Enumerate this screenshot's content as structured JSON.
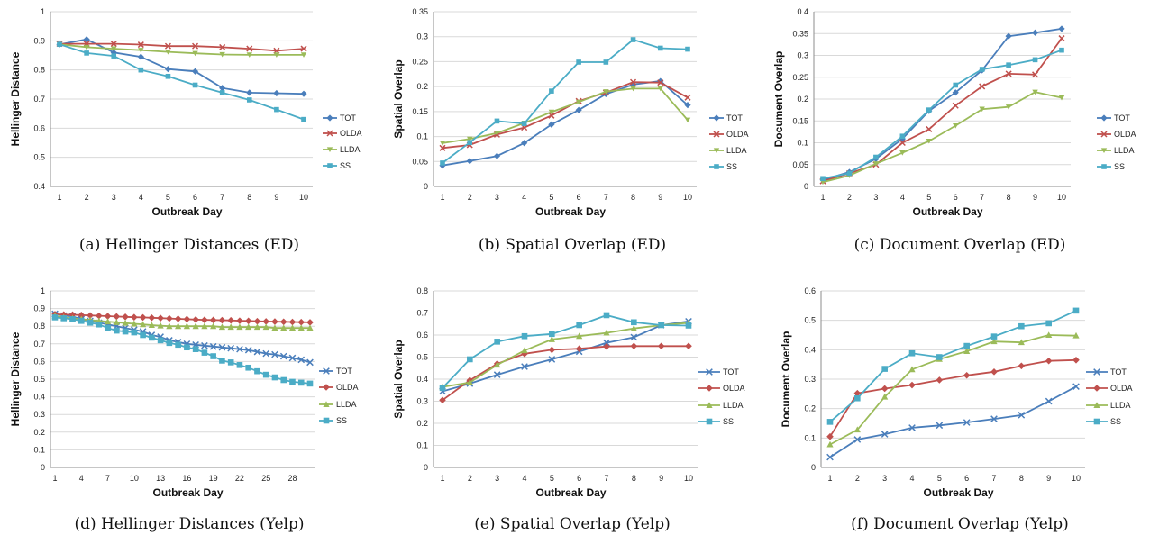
{
  "colors": {
    "TOT": "#4a7ebb",
    "OLDA": "#c0504d",
    "LLDA": "#9bbb59",
    "SS": "#4bacc6"
  },
  "legend_order": [
    "TOT",
    "OLDA",
    "LLDA",
    "SS"
  ],
  "chart_data": [
    {
      "type": "line",
      "title": "",
      "caption": "(a) Hellinger Distances (ED)",
      "xlabel": "Outbreak Day",
      "ylabel": "Hellinger Distance",
      "x": [
        1,
        2,
        3,
        4,
        5,
        6,
        7,
        8,
        9,
        10
      ],
      "xticks": [
        "1",
        "2",
        "3",
        "4",
        "5",
        "6",
        "7",
        "8",
        "9",
        "10"
      ],
      "ylim": [
        0.4,
        1
      ],
      "yticks": [
        "0.4",
        "0.5",
        "0.6",
        "0.7",
        "0.8",
        "0.9",
        "1"
      ],
      "marker_style": "classic",
      "series": [
        {
          "name": "TOT",
          "values": [
            0.888,
            0.905,
            0.86,
            0.845,
            0.803,
            0.795,
            0.738,
            0.722,
            0.72,
            0.718
          ]
        },
        {
          "name": "OLDA",
          "values": [
            0.89,
            0.89,
            0.89,
            0.887,
            0.882,
            0.882,
            0.878,
            0.873,
            0.866,
            0.873
          ]
        },
        {
          "name": "LLDA",
          "values": [
            0.888,
            0.878,
            0.873,
            0.868,
            0.862,
            0.857,
            0.853,
            0.852,
            0.852,
            0.852
          ]
        },
        {
          "name": "SS",
          "values": [
            0.888,
            0.858,
            0.848,
            0.8,
            0.778,
            0.748,
            0.722,
            0.697,
            0.664,
            0.63
          ]
        }
      ]
    },
    {
      "type": "line",
      "title": "",
      "caption": "(b) Spatial Overlap (ED)",
      "xlabel": "Outbreak Day",
      "ylabel": "Spatial Overlap",
      "x": [
        1,
        2,
        3,
        4,
        5,
        6,
        7,
        8,
        9,
        10
      ],
      "xticks": [
        "1",
        "2",
        "3",
        "4",
        "5",
        "6",
        "7",
        "8",
        "9",
        "10"
      ],
      "ylim": [
        0,
        0.35
      ],
      "yticks": [
        "0",
        "0.05",
        "0.1",
        "0.15",
        "0.2",
        "0.25",
        "0.3",
        "0.35"
      ],
      "marker_style": "classic",
      "series": [
        {
          "name": "TOT",
          "values": [
            0.042,
            0.051,
            0.061,
            0.087,
            0.124,
            0.153,
            0.185,
            0.204,
            0.211,
            0.163
          ]
        },
        {
          "name": "OLDA",
          "values": [
            0.077,
            0.083,
            0.104,
            0.118,
            0.142,
            0.171,
            0.188,
            0.209,
            0.208,
            0.178
          ]
        },
        {
          "name": "LLDA",
          "values": [
            0.087,
            0.095,
            0.107,
            0.127,
            0.149,
            0.169,
            0.19,
            0.196,
            0.196,
            0.133
          ]
        },
        {
          "name": "SS",
          "values": [
            0.047,
            0.088,
            0.131,
            0.126,
            0.191,
            0.249,
            0.249,
            0.294,
            0.277,
            0.275
          ]
        }
      ]
    },
    {
      "type": "line",
      "title": "",
      "caption": "(c) Document Overlap (ED)",
      "xlabel": "Outbreak Day",
      "ylabel": "Document Overlap",
      "x": [
        1,
        2,
        3,
        4,
        5,
        6,
        7,
        8,
        9,
        10
      ],
      "xticks": [
        "1",
        "2",
        "3",
        "4",
        "5",
        "6",
        "7",
        "8",
        "9",
        "10"
      ],
      "ylim": [
        0,
        0.4
      ],
      "yticks": [
        "0",
        "0.05",
        "0.1",
        "0.15",
        "0.2",
        "0.25",
        "0.3",
        "0.35",
        "0.4"
      ],
      "marker_style": "classic",
      "series": [
        {
          "name": "TOT",
          "values": [
            0.015,
            0.033,
            0.063,
            0.109,
            0.173,
            0.215,
            0.266,
            0.344,
            0.352,
            0.361
          ]
        },
        {
          "name": "OLDA",
          "values": [
            0.012,
            0.03,
            0.05,
            0.1,
            0.131,
            0.185,
            0.229,
            0.258,
            0.256,
            0.339
          ]
        },
        {
          "name": "LLDA",
          "values": [
            0.01,
            0.025,
            0.052,
            0.077,
            0.104,
            0.139,
            0.177,
            0.182,
            0.216,
            0.203
          ]
        },
        {
          "name": "SS",
          "values": [
            0.018,
            0.03,
            0.067,
            0.115,
            0.175,
            0.232,
            0.268,
            0.278,
            0.29,
            0.312
          ]
        }
      ]
    },
    {
      "type": "line",
      "title": "",
      "caption": "(d) Hellinger Distances (Yelp)",
      "xlabel": "Outbreak Day",
      "ylabel": "Hellinger Distance",
      "x": [
        1,
        2,
        3,
        4,
        5,
        6,
        7,
        8,
        9,
        10,
        11,
        12,
        13,
        14,
        15,
        16,
        17,
        18,
        19,
        20,
        21,
        22,
        23,
        24,
        25,
        26,
        27,
        28,
        29,
        30
      ],
      "xticks": [
        "1",
        "4",
        "7",
        "10",
        "13",
        "16",
        "19",
        "22",
        "25",
        "28"
      ],
      "ylim": [
        0,
        1
      ],
      "yticks": [
        "0",
        "0.1",
        "0.2",
        "0.3",
        "0.4",
        "0.5",
        "0.6",
        "0.7",
        "0.8",
        "0.9",
        "1"
      ],
      "marker_style": "modern",
      "series": [
        {
          "name": "TOT",
          "values": [
            0.87,
            0.86,
            0.855,
            0.84,
            0.83,
            0.82,
            0.81,
            0.8,
            0.79,
            0.78,
            0.77,
            0.75,
            0.74,
            0.72,
            0.71,
            0.7,
            0.695,
            0.69,
            0.685,
            0.68,
            0.675,
            0.67,
            0.665,
            0.655,
            0.645,
            0.64,
            0.63,
            0.62,
            0.61,
            0.595
          ]
        },
        {
          "name": "OLDA",
          "values": [
            0.868,
            0.866,
            0.865,
            0.863,
            0.861,
            0.859,
            0.857,
            0.855,
            0.853,
            0.851,
            0.85,
            0.848,
            0.846,
            0.844,
            0.842,
            0.84,
            0.838,
            0.836,
            0.835,
            0.834,
            0.833,
            0.831,
            0.83,
            0.828,
            0.827,
            0.826,
            0.825,
            0.824,
            0.823,
            0.822
          ]
        },
        {
          "name": "LLDA",
          "values": [
            0.858,
            0.85,
            0.845,
            0.84,
            0.835,
            0.83,
            0.826,
            0.822,
            0.818,
            0.814,
            0.81,
            0.806,
            0.803,
            0.8,
            0.8,
            0.8,
            0.8,
            0.8,
            0.8,
            0.795,
            0.795,
            0.795,
            0.795,
            0.795,
            0.795,
            0.79,
            0.79,
            0.79,
            0.79,
            0.79
          ]
        },
        {
          "name": "SS",
          "values": [
            0.85,
            0.845,
            0.84,
            0.83,
            0.82,
            0.81,
            0.79,
            0.775,
            0.77,
            0.765,
            0.75,
            0.735,
            0.72,
            0.705,
            0.695,
            0.68,
            0.67,
            0.65,
            0.63,
            0.605,
            0.595,
            0.58,
            0.565,
            0.545,
            0.525,
            0.51,
            0.495,
            0.485,
            0.48,
            0.475
          ]
        }
      ]
    },
    {
      "type": "line",
      "title": "",
      "caption": "(e) Spatial Overlap (Yelp)",
      "xlabel": "Outbreak Day",
      "ylabel": "Spatial Overlap",
      "x": [
        1,
        2,
        3,
        4,
        5,
        6,
        7,
        8,
        9,
        10
      ],
      "xticks": [
        "1",
        "2",
        "3",
        "4",
        "5",
        "6",
        "7",
        "8",
        "9",
        "10"
      ],
      "ylim": [
        0,
        0.8
      ],
      "yticks": [
        "0",
        "0.1",
        "0.2",
        "0.3",
        "0.4",
        "0.5",
        "0.6",
        "0.7",
        "0.8"
      ],
      "marker_style": "modern",
      "series": [
        {
          "name": "TOT",
          "values": [
            0.345,
            0.38,
            0.42,
            0.457,
            0.49,
            0.525,
            0.565,
            0.59,
            0.645,
            0.662
          ]
        },
        {
          "name": "OLDA",
          "values": [
            0.305,
            0.395,
            0.47,
            0.515,
            0.533,
            0.538,
            0.548,
            0.55,
            0.55,
            0.55
          ]
        },
        {
          "name": "LLDA",
          "values": [
            0.365,
            0.385,
            0.465,
            0.53,
            0.58,
            0.595,
            0.61,
            0.63,
            0.645,
            0.655
          ]
        },
        {
          "name": "SS",
          "values": [
            0.36,
            0.49,
            0.57,
            0.595,
            0.605,
            0.645,
            0.69,
            0.658,
            0.645,
            0.643
          ]
        }
      ]
    },
    {
      "type": "line",
      "title": "",
      "caption": "(f) Document Overlap (Yelp)",
      "xlabel": "Outbreak Day",
      "ylabel": "Document Overlap",
      "x": [
        1,
        2,
        3,
        4,
        5,
        6,
        7,
        8,
        9,
        10
      ],
      "xticks": [
        "1",
        "2",
        "3",
        "4",
        "5",
        "6",
        "7",
        "8",
        "9",
        "10"
      ],
      "ylim": [
        0,
        0.6
      ],
      "yticks": [
        "0",
        "0.1",
        "0.2",
        "0.3",
        "0.4",
        "0.5",
        "0.6"
      ],
      "marker_style": "modern",
      "series": [
        {
          "name": "TOT",
          "values": [
            0.035,
            0.095,
            0.113,
            0.135,
            0.143,
            0.153,
            0.165,
            0.178,
            0.225,
            0.275
          ]
        },
        {
          "name": "OLDA",
          "values": [
            0.105,
            0.252,
            0.268,
            0.28,
            0.297,
            0.313,
            0.325,
            0.345,
            0.362,
            0.365
          ]
        },
        {
          "name": "LLDA",
          "values": [
            0.078,
            0.128,
            0.24,
            0.333,
            0.368,
            0.395,
            0.428,
            0.425,
            0.45,
            0.448
          ]
        },
        {
          "name": "SS",
          "values": [
            0.155,
            0.235,
            0.335,
            0.388,
            0.375,
            0.413,
            0.445,
            0.48,
            0.49,
            0.533
          ]
        }
      ]
    }
  ]
}
